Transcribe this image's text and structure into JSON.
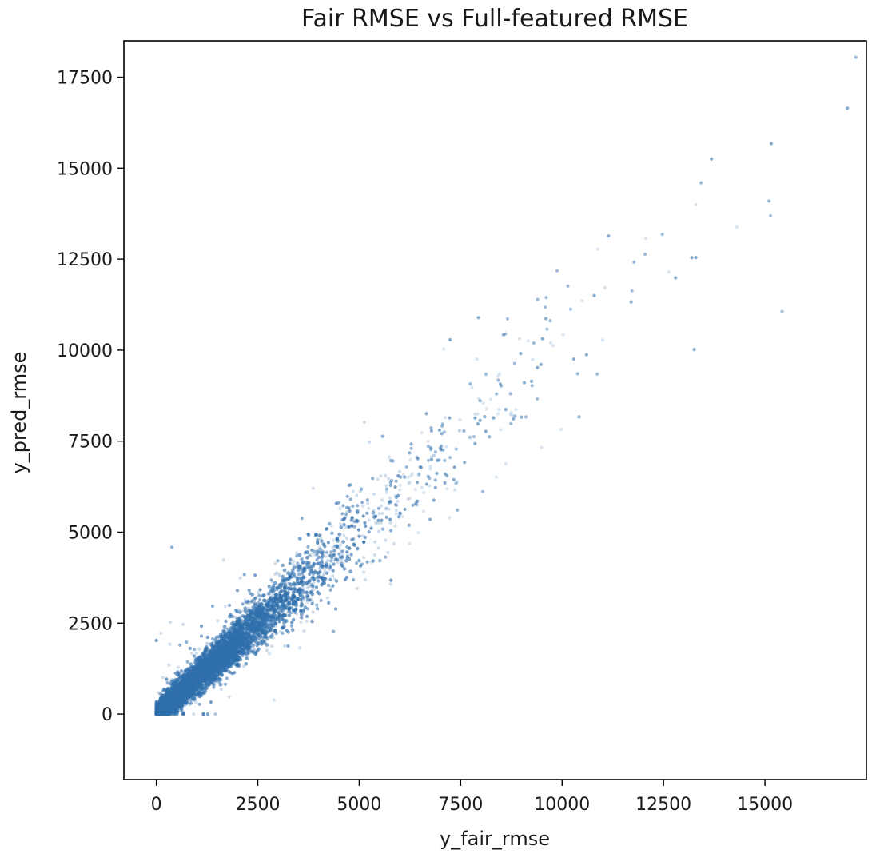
{
  "chart_data": {
    "type": "scatter",
    "title": "Fair RMSE vs Full-featured RMSE",
    "xlabel": "y_fair_rmse",
    "ylabel": "y_pred_rmse",
    "xlim": [
      -800,
      17500
    ],
    "ylim": [
      -1800,
      18500
    ],
    "xticks": [
      0,
      2500,
      5000,
      7500,
      10000,
      12500,
      15000
    ],
    "yticks": [
      0,
      2500,
      5000,
      7500,
      10000,
      12500,
      15000,
      17500
    ],
    "grid": false,
    "legend": "none",
    "marker_color": "#2e6fab",
    "marker_alpha": 0.1,
    "series": [
      {
        "description": "dense cloud along y = x, densest near origin",
        "x": [
          0,
          200,
          500,
          1000,
          1500,
          2000,
          2500,
          3000,
          3500,
          4000,
          4500,
          5000,
          5500,
          6000,
          6500,
          7000,
          7500,
          8000,
          8500,
          9000,
          9500,
          10000,
          10500,
          11000,
          11500,
          12000,
          13000,
          14000,
          15000,
          16500
        ],
        "y": [
          50,
          300,
          600,
          1050,
          1550,
          2050,
          2550,
          3050,
          3550,
          4050,
          4550,
          5050,
          5500,
          6000,
          6500,
          7000,
          7450,
          7950,
          8500,
          9000,
          9500,
          10000,
          10500,
          11000,
          11500,
          12000,
          13500,
          14500,
          15500,
          16300
        ]
      }
    ]
  }
}
